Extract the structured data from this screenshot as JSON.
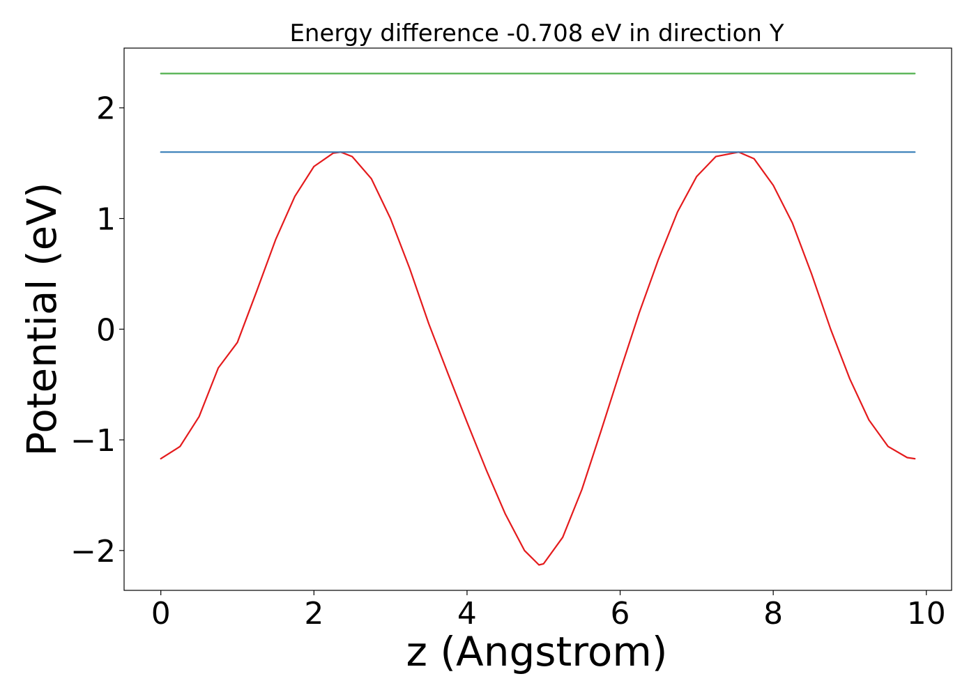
{
  "chart_data": {
    "type": "line",
    "title": "Energy difference -0.708 eV in direction Y",
    "xlabel": "z (Angstrom)",
    "ylabel": "Potential (eV)",
    "xlim": [
      -0.48,
      10.33
    ],
    "ylim": [
      -2.36,
      2.54
    ],
    "xticks": [
      0,
      2,
      4,
      6,
      8,
      10
    ],
    "xtick_labels": [
      "0",
      "2",
      "4",
      "6",
      "8",
      "10"
    ],
    "yticks": [
      -2,
      -1,
      0,
      1,
      2
    ],
    "ytick_labels": [
      "−2",
      "−1",
      "0",
      "1",
      "2"
    ],
    "grid": false,
    "series": [
      {
        "color": "#e41a1c",
        "x": [
          0.0,
          0.25,
          0.5,
          0.75,
          1.0,
          1.25,
          1.5,
          1.75,
          2.0,
          2.25,
          2.35,
          2.5,
          2.75,
          3.0,
          3.25,
          3.5,
          3.75,
          4.0,
          4.25,
          4.5,
          4.75,
          4.94,
          5.0,
          5.25,
          5.5,
          5.75,
          6.0,
          6.25,
          6.5,
          6.75,
          7.0,
          7.25,
          7.55,
          7.75,
          8.0,
          8.25,
          8.5,
          8.75,
          9.0,
          9.25,
          9.5,
          9.75,
          9.85
        ],
        "y": [
          -1.17,
          -1.06,
          -0.79,
          -0.35,
          -0.12,
          0.34,
          0.81,
          1.2,
          1.47,
          1.59,
          1.6,
          1.56,
          1.36,
          1.0,
          0.55,
          0.05,
          -0.4,
          -0.84,
          -1.27,
          -1.67,
          -2.0,
          -2.13,
          -2.12,
          -1.88,
          -1.45,
          -0.92,
          -0.38,
          0.15,
          0.63,
          1.06,
          1.38,
          1.56,
          1.6,
          1.54,
          1.3,
          0.96,
          0.5,
          0.0,
          -0.45,
          -0.82,
          -1.06,
          -1.16,
          -1.17
        ]
      },
      {
        "color": "#377eb8",
        "x": [
          0.0,
          9.85
        ],
        "y": [
          1.6,
          1.6
        ]
      },
      {
        "color": "#4daf4a",
        "x": [
          0.0,
          9.85
        ],
        "y": [
          2.31,
          2.31
        ]
      }
    ]
  }
}
